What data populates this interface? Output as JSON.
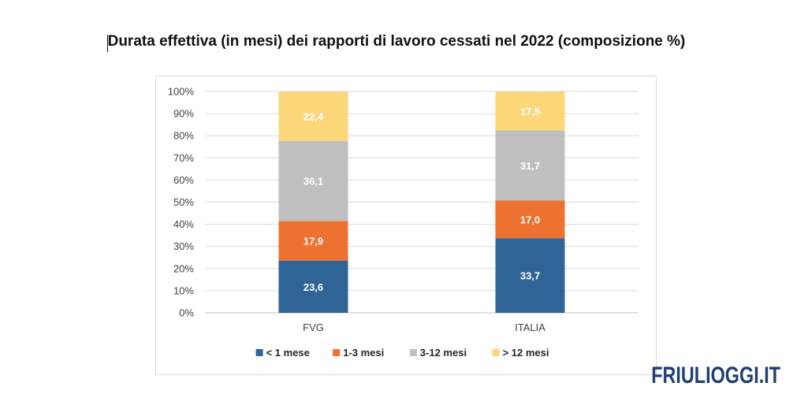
{
  "title": "Durata effettiva (in mesi) dei rapporti di lavoro cessati nel 2022 (composizione %)",
  "watermark": "FRIULIOGGI.IT",
  "chart_data": {
    "type": "bar",
    "stacked": true,
    "categories": [
      "FVG",
      "ITALIA"
    ],
    "y_ticks": [
      "0%",
      "10%",
      "20%",
      "30%",
      "40%",
      "50%",
      "60%",
      "70%",
      "80%",
      "90%",
      "100%"
    ],
    "ylim": [
      0,
      100
    ],
    "grid": true,
    "legend_position": "bottom",
    "series": [
      {
        "name": "< 1 mese",
        "color": "#2e6496",
        "values": [
          23.6,
          33.7
        ],
        "labels": [
          "23,6",
          "33,7"
        ]
      },
      {
        "name": "1-3 mesi",
        "color": "#ed7130",
        "values": [
          17.9,
          17.0
        ],
        "labels": [
          "17,9",
          "17,0"
        ]
      },
      {
        "name": "3-12 mesi",
        "color": "#bfbfbf",
        "values": [
          36.1,
          31.7
        ],
        "labels": [
          "36,1",
          "31,7"
        ]
      },
      {
        "name": "> 12 mesi",
        "color": "#fbd77a",
        "values": [
          22.4,
          17.5
        ],
        "labels": [
          "22,4",
          "17,5"
        ]
      }
    ]
  }
}
